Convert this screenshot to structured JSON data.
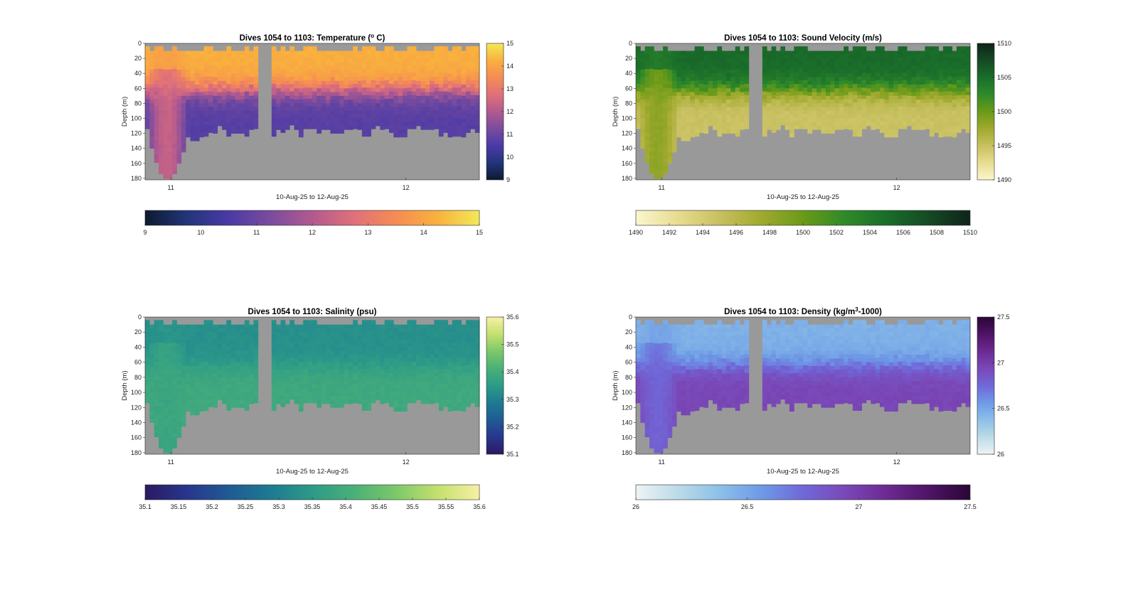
{
  "figure": {
    "background": "#ffffff",
    "mask_color": "#999999"
  },
  "chart_data": [
    {
      "type": "heatmap",
      "id": "temperature",
      "title_prefix": "Dives 1054 to 1103: Temperature (",
      "title_sup": "o",
      "title_suffix": " C)",
      "ylabel": "Depth (m)",
      "xlabel": "10-Aug-25 to 12-Aug-25",
      "x_ticks": [
        "11",
        "12"
      ],
      "y_ticks": [
        "0",
        "20",
        "40",
        "60",
        "80",
        "100",
        "120",
        "140",
        "160",
        "180"
      ],
      "ylim": [
        0,
        182
      ],
      "y_reversed": true,
      "colorbar": {
        "range": [
          9,
          15
        ],
        "right_ticks": [
          "15",
          "14",
          "13",
          "12",
          "11",
          "10",
          "9"
        ],
        "bottom_ticks": [
          "9",
          "10",
          "11",
          "12",
          "13",
          "14",
          "15"
        ],
        "colors": [
          "#0d1a30",
          "#22357a",
          "#4a3aa6",
          "#7a4c9e",
          "#b25a8f",
          "#e0707a",
          "#f58c54",
          "#f9b13d",
          "#f2e95a"
        ]
      },
      "profile": {
        "surface_value": 14.2,
        "thermocline_depth_m": 60,
        "deep_value": 10.7,
        "front_value": 12.6
      }
    },
    {
      "type": "heatmap",
      "id": "sound_velocity",
      "title_prefix": "Dives 1054 to 1103: Sound Velocity (m/s)",
      "title_sup": "",
      "title_suffix": "",
      "ylabel": "Depth (m)",
      "xlabel": "10-Aug-25 to 12-Aug-25",
      "x_ticks": [
        "11",
        "12"
      ],
      "y_ticks": [
        "0",
        "20",
        "40",
        "60",
        "80",
        "100",
        "120",
        "140",
        "160",
        "180"
      ],
      "ylim": [
        0,
        182
      ],
      "y_reversed": true,
      "colorbar": {
        "range": [
          1490,
          1510
        ],
        "right_ticks": [
          "1510",
          "1505",
          "1500",
          "1495",
          "1490"
        ],
        "bottom_ticks": [
          "1490",
          "1492",
          "1494",
          "1496",
          "1498",
          "1500",
          "1502",
          "1504",
          "1506",
          "1508",
          "1510"
        ],
        "colors": [
          "#fbf6cf",
          "#e8dc90",
          "#c8c060",
          "#a0aa2e",
          "#6a9a18",
          "#2f8a2a",
          "#1a6e2a",
          "#154a25",
          "#0f241a"
        ]
      },
      "profile": {
        "surface_value": 1505.3,
        "thermocline_depth_m": 60,
        "deep_value": 1494.8,
        "front_value": 1499.0
      }
    },
    {
      "type": "heatmap",
      "id": "salinity",
      "title_prefix": "Dives 1054 to 1103: Salinity (psu)",
      "title_sup": "",
      "title_suffix": "",
      "ylabel": "Depth (m)",
      "xlabel": "10-Aug-25 to 12-Aug-25",
      "x_ticks": [
        "11",
        "12"
      ],
      "y_ticks": [
        "0",
        "20",
        "40",
        "60",
        "80",
        "100",
        "120",
        "140",
        "160",
        "180"
      ],
      "ylim": [
        0,
        182
      ],
      "y_reversed": true,
      "colorbar": {
        "range": [
          35.1,
          35.6
        ],
        "right_ticks": [
          "35.6",
          "35.5",
          "35.4",
          "35.3",
          "35.2",
          "35.1"
        ],
        "bottom_ticks": [
          "35.1",
          "35.15",
          "35.2",
          "35.25",
          "35.3",
          "35.35",
          "35.4",
          "35.45",
          "35.5",
          "35.55",
          "35.6"
        ],
        "colors": [
          "#2a1a62",
          "#28368c",
          "#1f5a94",
          "#1e7a92",
          "#2c9a88",
          "#4ab078",
          "#7cc86a",
          "#c4e06e",
          "#f7f0a6"
        ]
      },
      "profile": {
        "surface_value": 35.33,
        "thermocline_depth_m": 62,
        "deep_value": 35.39,
        "front_value": 35.38
      }
    },
    {
      "type": "heatmap",
      "id": "density",
      "title_prefix": "Dives 1054 to 1103: Density (kg/m",
      "title_sup": "3",
      "title_suffix": "-1000)",
      "ylabel": "Depth (m)",
      "xlabel": "10-Aug-25 to 12-Aug-25",
      "x_ticks": [
        "11",
        "12"
      ],
      "y_ticks": [
        "0",
        "20",
        "40",
        "60",
        "80",
        "100",
        "120",
        "140",
        "160",
        "180"
      ],
      "ylim": [
        0,
        182
      ],
      "y_reversed": true,
      "colorbar": {
        "range": [
          26,
          27.5
        ],
        "right_ticks": [
          "27.5",
          "27",
          "26.5",
          "26"
        ],
        "bottom_ticks": [
          "26",
          "26.5",
          "27",
          "27.5"
        ],
        "colors": [
          "#eef4f6",
          "#bcdbe8",
          "#8cc0e8",
          "#6e9ae6",
          "#7068d8",
          "#7a48b8",
          "#6c2a92",
          "#4e1466",
          "#2a0636"
        ]
      },
      "profile": {
        "surface_value": 26.45,
        "thermocline_depth_m": 62,
        "deep_value": 26.95,
        "front_value": 26.75
      }
    }
  ]
}
